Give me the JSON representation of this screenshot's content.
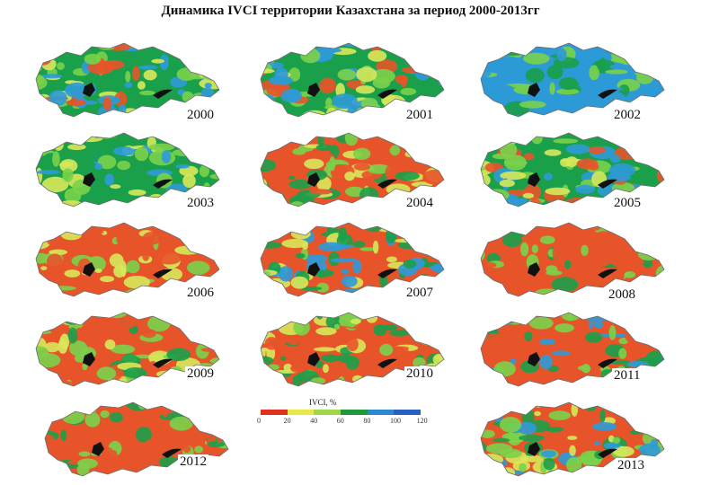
{
  "title": "Динамика IVCI территории Казахстана за период 2000-2013гг",
  "panels": [
    {
      "year": "2000",
      "palette": [
        "#1aa04a",
        "#7ad24a",
        "#2d9ad8",
        "#e8542a",
        "#d7e85a"
      ]
    },
    {
      "year": "2001",
      "palette": [
        "#1aa04a",
        "#7ad24a",
        "#2d9ad8",
        "#e8542a",
        "#d7e85a"
      ]
    },
    {
      "year": "2002",
      "palette": [
        "#2d9ad8",
        "#2d9ad8",
        "#1aa04a",
        "#7ad24a",
        "#2d9ad8"
      ]
    },
    {
      "year": "2003",
      "palette": [
        "#1aa04a",
        "#7ad24a",
        "#2d9ad8",
        "#d7e85a",
        "#1aa04a"
      ]
    },
    {
      "year": "2004",
      "palette": [
        "#e8542a",
        "#7ad24a",
        "#d7e85a",
        "#e8542a",
        "#1aa04a"
      ]
    },
    {
      "year": "2005",
      "palette": [
        "#1aa04a",
        "#7ad24a",
        "#d7e85a",
        "#2d9ad8",
        "#e8542a"
      ]
    },
    {
      "year": "2006",
      "palette": [
        "#e8542a",
        "#e8542a",
        "#7ad24a",
        "#e8542a",
        "#d7e85a"
      ]
    },
    {
      "year": "2007",
      "palette": [
        "#e8542a",
        "#1aa04a",
        "#7ad24a",
        "#d7e85a",
        "#2d9ad8"
      ]
    },
    {
      "year": "2008",
      "palette": [
        "#e8542a",
        "#e8542a",
        "#7ad24a",
        "#1aa04a",
        "#e8542a"
      ]
    },
    {
      "year": "2009",
      "palette": [
        "#e8542a",
        "#e8542a",
        "#7ad24a",
        "#1aa04a",
        "#d7e85a"
      ]
    },
    {
      "year": "2010",
      "palette": [
        "#e8542a",
        "#7ad24a",
        "#1aa04a",
        "#e8542a",
        "#d7e85a"
      ]
    },
    {
      "year": "2011",
      "palette": [
        "#e8542a",
        "#1aa04a",
        "#2d9ad8",
        "#e8542a",
        "#7ad24a"
      ]
    },
    {
      "year": "2012",
      "palette": [
        "#e8542a",
        "#e8542a",
        "#e8542a",
        "#7ad24a",
        "#1aa04a"
      ]
    },
    {
      "year": "2013",
      "palette": [
        "#e8542a",
        "#7ad24a",
        "#d7e85a",
        "#1aa04a",
        "#2d9ad8"
      ]
    }
  ],
  "legend": {
    "title": "IVCI, %",
    "ticks": [
      "0",
      "20",
      "40",
      "60",
      "80",
      "100",
      "120"
    ],
    "colors": [
      "#e0301e",
      "#e8e84a",
      "#9cd84a",
      "#1e9a3a",
      "#2a8ad0",
      "#2a60c0"
    ]
  }
}
